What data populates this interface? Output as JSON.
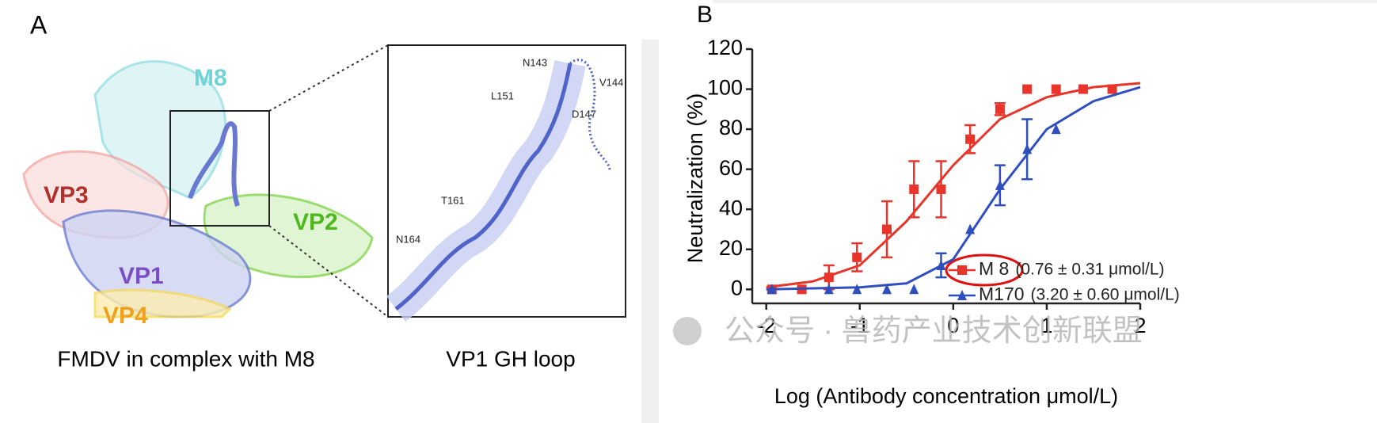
{
  "panel_a": {
    "label": "A",
    "caption": "FMDV in complex with M8",
    "inset_caption": "VP1 GH loop",
    "structure_labels": [
      {
        "text": "M8",
        "color": "#6fd3d8"
      },
      {
        "text": "VP3",
        "color": "#b0302a"
      },
      {
        "text": "VP2",
        "color": "#4fb81c"
      },
      {
        "text": "VP1",
        "color": "#7a4fc4"
      },
      {
        "text": "VP4",
        "color": "#f0a020"
      }
    ],
    "residue_labels": [
      "N143",
      "V144",
      "L151",
      "D147",
      "T161",
      "N164"
    ]
  },
  "chart_data": {
    "type": "scatter",
    "panel_label": "B",
    "xlabel": "Log (Antibody concentration μmol/L)",
    "ylabel": "Neutralization (%)",
    "xlim": [
      -2.15,
      2
    ],
    "xticks": [
      -2,
      -1,
      0,
      1,
      2
    ],
    "ylim": [
      -7,
      120
    ],
    "yticks": [
      0,
      20,
      40,
      60,
      80,
      100,
      120
    ],
    "watermark": "公众号 · 兽药产业技术创新联盟",
    "series": [
      {
        "name": "M 8",
        "note": "(0.76 ± 0.31 μmol/L)",
        "color": "#e8342a",
        "marker": "square",
        "x": [
          -1.94,
          -1.62,
          -1.33,
          -1.03,
          -0.71,
          -0.42,
          -0.13,
          0.18,
          0.5,
          0.79,
          1.1,
          1.39,
          1.7
        ],
        "values": [
          0,
          0,
          6,
          16,
          30,
          50,
          50,
          75,
          90,
          100,
          100,
          100,
          100
        ],
        "errors": [
          null,
          null,
          6,
          7,
          14,
          14,
          14,
          7,
          3,
          null,
          null,
          null,
          null
        ],
        "curve": {
          "x": [
            -2,
            -1.5,
            -1,
            -0.5,
            0,
            0.5,
            1,
            1.5,
            2
          ],
          "values": [
            1,
            4,
            12,
            34,
            62,
            85,
            96,
            101,
            103
          ]
        }
      },
      {
        "name": "M170",
        "note": "(3.20 ± 0.60 μmol/L)",
        "color": "#2f4fbf",
        "marker": "triangle",
        "x": [
          -1.94,
          -1.33,
          -1.03,
          -0.71,
          -0.42,
          -0.13,
          0.18,
          0.5,
          0.79,
          1.1
        ],
        "values": [
          0,
          0,
          0,
          0,
          0,
          12,
          30,
          52,
          70,
          80
        ],
        "errors": [
          null,
          null,
          null,
          null,
          null,
          6,
          null,
          10,
          15,
          null
        ],
        "curve": {
          "x": [
            -2,
            -1.5,
            -1,
            -0.5,
            0,
            0.5,
            1,
            1.5,
            2
          ],
          "values": [
            0,
            0.5,
            1,
            3,
            15,
            50,
            80,
            94,
            101
          ]
        }
      }
    ]
  }
}
